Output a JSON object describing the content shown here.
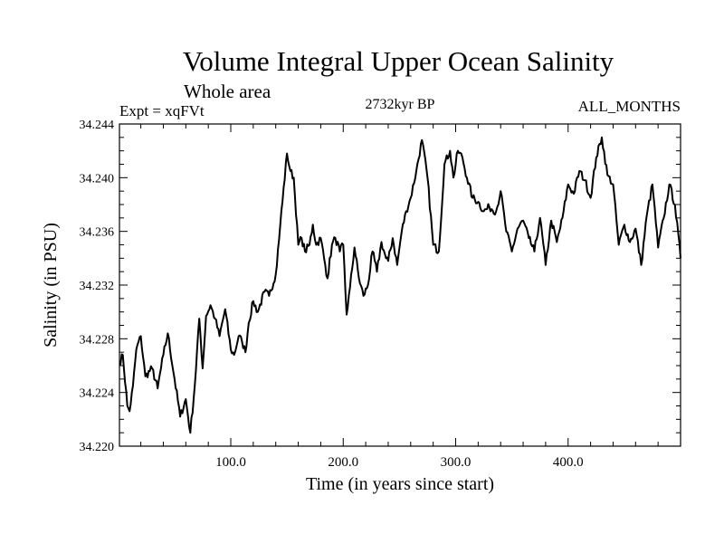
{
  "chart_data": {
    "type": "line",
    "title": "Volume Integral Upper Ocean Salinity",
    "subtitle": "Whole area",
    "left_label": "Expt = xqFVt",
    "center_label": "2732kyr BP",
    "right_label": "ALL_MONTHS",
    "xlabel": "Time (in years since start)",
    "ylabel": "Salinity (in PSU)",
    "xlim": [
      1,
      500
    ],
    "ylim": [
      34.22,
      34.244
    ],
    "x_ticks": [
      100,
      200,
      300,
      400
    ],
    "x_tick_labels": [
      "100.0",
      "200.0",
      "300.0",
      "400.0"
    ],
    "y_ticks": [
      34.22,
      34.224,
      34.228,
      34.232,
      34.236,
      34.24,
      34.244
    ],
    "y_tick_labels": [
      "34.220",
      "34.224",
      "34.228",
      "34.232",
      "34.236",
      "34.240",
      "34.244"
    ],
    "grid": false,
    "series": [
      {
        "name": "salinity",
        "color": "#000000",
        "x": [
          1,
          4,
          8,
          10,
          13,
          16,
          20,
          24,
          30,
          35,
          40,
          44,
          50,
          55,
          60,
          64,
          68,
          72,
          75,
          78,
          82,
          86,
          90,
          95,
          100,
          103,
          107,
          110,
          113,
          116,
          120,
          124,
          130,
          134,
          140,
          144,
          150,
          153,
          156,
          160,
          163,
          166,
          170,
          173,
          176,
          180,
          183,
          186,
          190,
          193,
          197,
          200,
          203,
          206,
          210,
          214,
          218,
          222,
          226,
          230,
          234,
          238,
          240,
          244,
          248,
          252,
          256,
          260,
          265,
          270,
          275,
          280,
          285,
          290,
          295,
          298,
          302,
          306,
          310,
          315,
          320,
          325,
          330,
          336,
          340,
          345,
          350,
          355,
          360,
          365,
          370,
          375,
          380,
          385,
          390,
          395,
          400,
          405,
          410,
          415,
          420,
          425,
          430,
          435,
          440,
          445,
          450,
          455,
          460,
          465,
          470,
          475,
          480,
          485,
          490,
          495,
          500
        ],
        "values": [
          34.2262,
          34.2268,
          34.223,
          34.2226,
          34.2245,
          34.2272,
          34.2282,
          34.2252,
          34.2258,
          34.2243,
          34.2268,
          34.2284,
          34.225,
          34.2222,
          34.2235,
          34.221,
          34.2245,
          34.2295,
          34.2258,
          34.2297,
          34.2305,
          34.2295,
          34.2282,
          34.2302,
          34.2272,
          34.2268,
          34.2282,
          34.2278,
          34.227,
          34.2292,
          34.2308,
          34.23,
          34.2315,
          34.2312,
          34.2328,
          34.2365,
          34.2418,
          34.2405,
          34.24,
          34.235,
          34.2355,
          34.2345,
          34.235,
          34.2365,
          34.235,
          34.2355,
          34.234,
          34.2325,
          34.235,
          34.2355,
          34.2345,
          34.235,
          34.2298,
          34.2318,
          34.2348,
          34.2325,
          34.2312,
          34.232,
          34.2345,
          34.233,
          34.2352,
          34.234,
          34.2338,
          34.2355,
          34.2335,
          34.236,
          34.2375,
          34.2385,
          34.2405,
          34.2428,
          34.24,
          34.235,
          34.2345,
          34.241,
          34.242,
          34.24,
          34.242,
          34.2415,
          34.24,
          34.2385,
          34.2382,
          34.2375,
          34.2378,
          34.2375,
          34.239,
          34.236,
          34.2345,
          34.2362,
          34.2368,
          34.2355,
          34.2345,
          34.237,
          34.2335,
          34.2368,
          34.2352,
          34.237,
          34.2395,
          34.2388,
          34.2405,
          34.2398,
          34.2385,
          34.2415,
          34.243,
          34.2402,
          34.2395,
          34.235,
          34.2365,
          34.2352,
          34.2362,
          34.2335,
          34.2372,
          34.2395,
          34.2348,
          34.237,
          34.2395,
          34.238,
          34.234
        ]
      }
    ]
  }
}
